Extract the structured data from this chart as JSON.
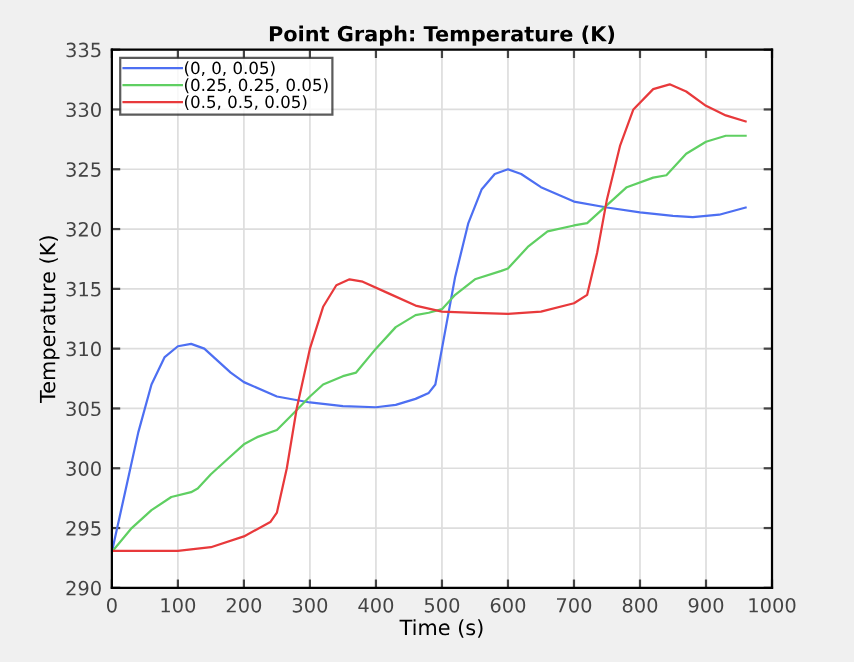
{
  "chart_data": {
    "type": "line",
    "title": "Point Graph: Temperature (K)",
    "xlabel": "Time (s)",
    "ylabel": "Temperature (K)",
    "xlim": [
      0,
      1000
    ],
    "xticks": [
      0,
      100,
      200,
      300,
      400,
      500,
      600,
      700,
      800,
      900,
      1000
    ],
    "ylim": [
      290,
      335
    ],
    "yticks": [
      290,
      295,
      300,
      305,
      310,
      315,
      320,
      325,
      330,
      335
    ],
    "grid": true,
    "legend": "top left",
    "series": [
      {
        "name": "(0, 0, 0.05)",
        "color": "#4d6ff2",
        "x": [
          0,
          20,
          40,
          60,
          80,
          100,
          120,
          140,
          160,
          180,
          200,
          250,
          300,
          350,
          400,
          430,
          460,
          480,
          490,
          500,
          520,
          540,
          560,
          580,
          600,
          620,
          650,
          700,
          750,
          800,
          850,
          880,
          920,
          960
        ],
        "values": [
          293,
          298,
          303,
          307,
          309.3,
          310.2,
          310.4,
          310,
          309,
          308,
          307.2,
          306,
          305.5,
          305.2,
          305.1,
          305.3,
          305.8,
          306.3,
          307,
          310,
          316,
          320.5,
          323.3,
          324.6,
          325,
          324.6,
          323.5,
          322.3,
          321.8,
          321.4,
          321.1,
          321,
          321.2,
          321.8
        ]
      },
      {
        "name": "(0.25, 0.25, 0.05)",
        "color": "#5fcf62",
        "x": [
          0,
          30,
          60,
          90,
          120,
          130,
          150,
          180,
          200,
          220,
          250,
          270,
          300,
          320,
          350,
          370,
          400,
          430,
          460,
          480,
          500,
          520,
          550,
          590,
          600,
          630,
          660,
          700,
          720,
          750,
          780,
          820,
          840,
          870,
          900,
          930,
          960
        ],
        "values": [
          293,
          295,
          296.5,
          297.6,
          298,
          298.3,
          299.5,
          301,
          302,
          302.6,
          303.2,
          304.3,
          306,
          307,
          307.7,
          308,
          310,
          311.8,
          312.8,
          313,
          313.3,
          314.5,
          315.8,
          316.5,
          316.7,
          318.5,
          319.8,
          320.3,
          320.5,
          322,
          323.5,
          324.3,
          324.5,
          326.3,
          327.3,
          327.8,
          327.8
        ]
      },
      {
        "name": "(0.5, 0.5, 0.05)",
        "color": "#e8393b",
        "x": [
          0,
          100,
          150,
          200,
          240,
          250,
          265,
          280,
          300,
          320,
          340,
          360,
          380,
          420,
          460,
          500,
          550,
          600,
          650,
          700,
          720,
          735,
          750,
          770,
          790,
          820,
          845,
          870,
          900,
          930,
          960
        ],
        "values": [
          293.1,
          293.1,
          293.4,
          294.3,
          295.5,
          296.3,
          300,
          305,
          310,
          313.5,
          315.3,
          315.8,
          315.6,
          314.6,
          313.6,
          313.1,
          313,
          312.9,
          313.1,
          313.8,
          314.5,
          318,
          322.5,
          327,
          330,
          331.7,
          332.1,
          331.5,
          330.3,
          329.5,
          329
        ]
      }
    ]
  }
}
